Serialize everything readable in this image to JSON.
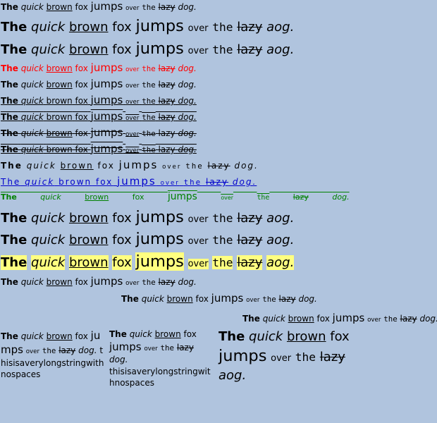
{
  "sentence": {
    "the": "The",
    "quick": "quick",
    "brown": "brown",
    "fox": "fox",
    "jumps": "jumps",
    "over": "over",
    "the2": "the",
    "lazy": "lazy",
    "dog": "dog",
    "aog": "aog",
    "period": "."
  },
  "long_word": "thisisaverylongstringwithnospaces",
  "colors": {
    "background": "#b0c4de",
    "red": "#ff0000",
    "blue": "#0000cd",
    "green": "#008000",
    "highlight": "#ffff80"
  }
}
